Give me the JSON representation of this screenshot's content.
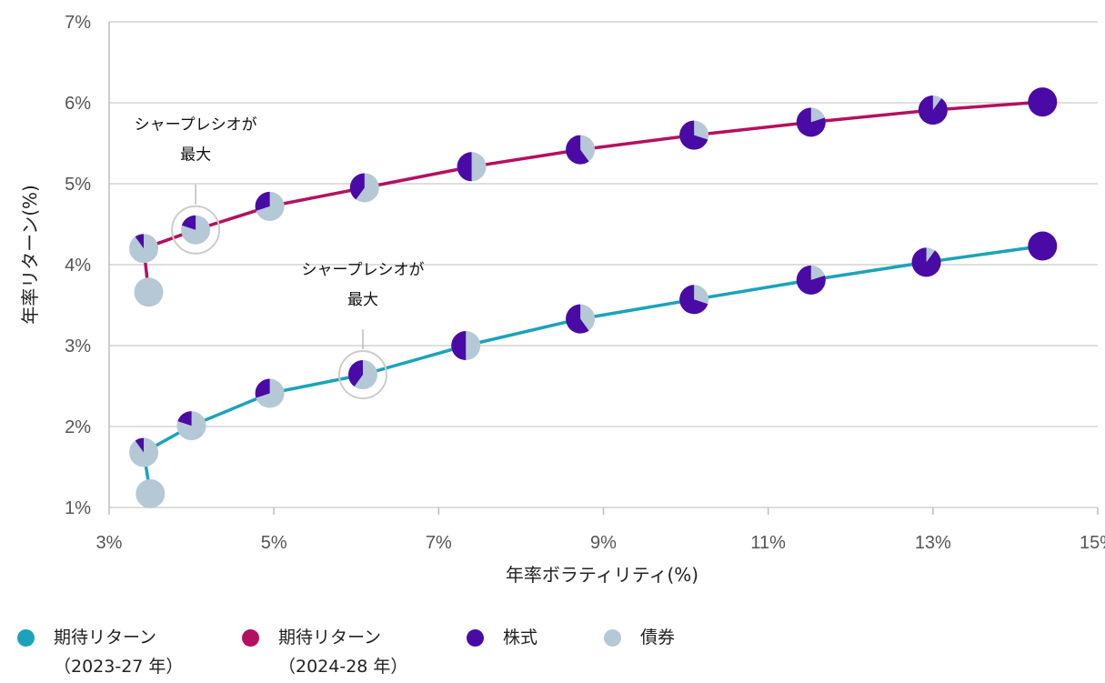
{
  "chart_data": {
    "type": "scatter",
    "xlabel": "年率ボラティリティ(%)",
    "ylabel": "年率リターン(%)",
    "xlim": [
      3,
      15
    ],
    "ylim": [
      1,
      7
    ],
    "x_ticks": [
      3,
      5,
      7,
      9,
      11,
      13,
      15
    ],
    "x_tick_labels": [
      "3%",
      "5%",
      "7%",
      "9%",
      "11%",
      "13%",
      "15%"
    ],
    "y_ticks": [
      1,
      2,
      3,
      4,
      5,
      6,
      7
    ],
    "y_tick_labels": [
      "1%",
      "2%",
      "3%",
      "4%",
      "5%",
      "6%",
      "7%"
    ],
    "grid": "horizontal",
    "legend_position": "bottom",
    "colors": {
      "series_2023": "#1ba3bb",
      "series_2024": "#b5105f",
      "stocks": "#4a0aa6",
      "bonds": "#b5c8d6"
    },
    "series": [
      {
        "name": "期待リターン（2023-27 年）",
        "color": "#1ba3bb",
        "points": [
          {
            "x": 3.5,
            "y": 1.17,
            "stock_share": 0.0
          },
          {
            "x": 3.42,
            "y": 1.68,
            "stock_share": 0.1
          },
          {
            "x": 4.0,
            "y": 2.01,
            "stock_share": 0.2
          },
          {
            "x": 4.95,
            "y": 2.41,
            "stock_share": 0.3
          },
          {
            "x": 6.08,
            "y": 2.64,
            "stock_share": 0.4
          },
          {
            "x": 7.33,
            "y": 3.0,
            "stock_share": 0.5
          },
          {
            "x": 8.72,
            "y": 3.33,
            "stock_share": 0.6
          },
          {
            "x": 10.1,
            "y": 3.57,
            "stock_share": 0.7
          },
          {
            "x": 11.52,
            "y": 3.81,
            "stock_share": 0.8
          },
          {
            "x": 12.92,
            "y": 4.03,
            "stock_share": 0.9
          },
          {
            "x": 14.33,
            "y": 4.23,
            "stock_share": 1.0
          }
        ]
      },
      {
        "name": "期待リターン（2024-28 年）",
        "color": "#b5105f",
        "points": [
          {
            "x": 3.48,
            "y": 3.66,
            "stock_share": 0.0
          },
          {
            "x": 3.42,
            "y": 4.2,
            "stock_share": 0.1
          },
          {
            "x": 4.05,
            "y": 4.43,
            "stock_share": 0.2
          },
          {
            "x": 4.95,
            "y": 4.72,
            "stock_share": 0.3
          },
          {
            "x": 6.1,
            "y": 4.95,
            "stock_share": 0.4
          },
          {
            "x": 7.4,
            "y": 5.21,
            "stock_share": 0.5
          },
          {
            "x": 8.72,
            "y": 5.42,
            "stock_share": 0.6
          },
          {
            "x": 10.1,
            "y": 5.6,
            "stock_share": 0.7
          },
          {
            "x": 11.52,
            "y": 5.76,
            "stock_share": 0.8
          },
          {
            "x": 13.0,
            "y": 5.91,
            "stock_share": 0.9
          },
          {
            "x": 14.33,
            "y": 6.01,
            "stock_share": 1.0
          }
        ]
      }
    ],
    "annotations": [
      {
        "series": 1,
        "point": 2,
        "lines": [
          "シャープレシオが",
          "最大"
        ]
      },
      {
        "series": 0,
        "point": 4,
        "lines": [
          "シャープレシオが",
          "最大"
        ]
      }
    ]
  },
  "legend": [
    {
      "label": "期待リターン",
      "sub": "（2023-27 年）",
      "color": "#1ba3bb"
    },
    {
      "label": "期待リターン",
      "sub": "（2024-28 年）",
      "color": "#b5105f"
    },
    {
      "label": "株式",
      "sub": "",
      "color": "#4a0aa6"
    },
    {
      "label": "債券",
      "sub": "",
      "color": "#b5c8d6"
    }
  ]
}
